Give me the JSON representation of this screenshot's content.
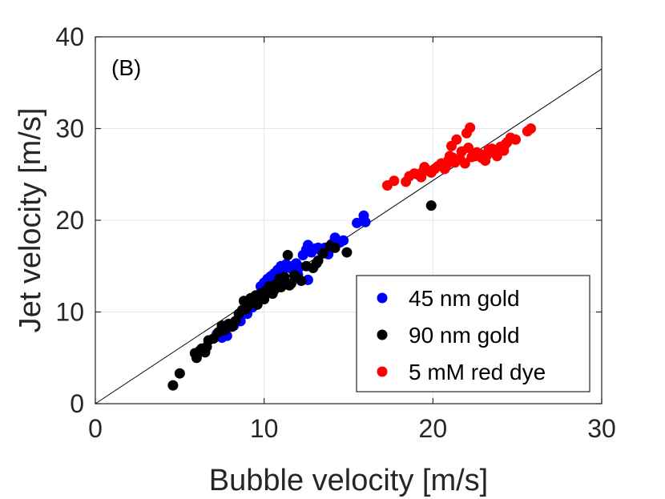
{
  "chart_data": {
    "type": "scatter",
    "panel_label": "(B)",
    "xlabel": "Bubble velocity [m/s]",
    "ylabel": "Jet velocity [m/s]",
    "xlim": [
      0,
      30
    ],
    "ylim": [
      0,
      40
    ],
    "xticks": [
      0,
      10,
      20,
      30
    ],
    "yticks": [
      0,
      10,
      20,
      30,
      40
    ],
    "grid": true,
    "legend_position": "bottom-right",
    "reference_line": {
      "x": [
        0,
        30
      ],
      "y": [
        0,
        36.5
      ],
      "color": "#000000"
    },
    "series": [
      {
        "name": "45 nm gold",
        "color": "#0000ff",
        "x": [
          7.2,
          7.5,
          7.8,
          8.2,
          8.6,
          9.0,
          9.3,
          9.6,
          9.8,
          10.0,
          10.2,
          10.4,
          10.6,
          10.8,
          11.0,
          11.2,
          11.3,
          11.5,
          11.7,
          11.9,
          12.1,
          12.3,
          12.5,
          12.6,
          12.8,
          13.0,
          13.2,
          13.4,
          13.6,
          13.8,
          14.0,
          14.2,
          14.5,
          14.7,
          15.5,
          15.9,
          16.0,
          10.5,
          11.1,
          12.0,
          12.6,
          9.7,
          10.1
        ],
        "y": [
          7.6,
          7.2,
          7.4,
          8.5,
          9.0,
          9.8,
          10.5,
          11.2,
          12.8,
          13.2,
          13.6,
          13.9,
          14.2,
          14.6,
          15.0,
          14.7,
          15.2,
          15.0,
          14.6,
          15.3,
          14.9,
          16.2,
          16.8,
          17.3,
          16.5,
          16.9,
          17.0,
          16.6,
          17.0,
          16.3,
          17.4,
          18.1,
          17.6,
          17.8,
          19.7,
          20.5,
          19.8,
          12.5,
          13.0,
          14.1,
          13.5,
          11.9,
          12.0
        ]
      },
      {
        "name": "90 nm gold",
        "color": "#000000",
        "x": [
          4.6,
          5.0,
          5.9,
          6.0,
          6.2,
          6.5,
          6.6,
          6.7,
          7.0,
          7.3,
          7.5,
          7.7,
          7.9,
          8.1,
          8.3,
          8.5,
          8.7,
          8.8,
          9.0,
          9.1,
          9.2,
          9.4,
          9.5,
          9.6,
          9.8,
          10.0,
          10.1,
          10.3,
          10.5,
          10.7,
          10.9,
          11.0,
          11.2,
          11.4,
          11.6,
          11.8,
          12.2,
          12.5,
          12.9,
          13.2,
          13.5,
          13.9,
          14.2,
          14.9,
          19.9,
          6.3,
          7.6,
          8.9,
          9.9,
          10.6,
          11.5,
          12.0,
          13.1
        ],
        "y": [
          2.0,
          3.3,
          5.5,
          5.0,
          5.8,
          5.6,
          6.2,
          6.9,
          7.1,
          7.8,
          8.5,
          8.1,
          8.7,
          8.4,
          9.0,
          9.8,
          10.2,
          11.2,
          10.5,
          10.9,
          11.5,
          11.0,
          11.8,
          10.8,
          12.0,
          11.4,
          12.3,
          12.8,
          12.0,
          13.0,
          13.6,
          12.7,
          13.8,
          16.2,
          13.1,
          14.0,
          13.4,
          15.0,
          14.8,
          15.6,
          16.4,
          17.2,
          17.0,
          16.5,
          21.6,
          6.0,
          8.0,
          10.3,
          11.6,
          12.4,
          12.9,
          13.7,
          15.3
        ]
      },
      {
        "name": "5 mM red dye",
        "color": "#ff0000",
        "x": [
          17.3,
          17.7,
          18.4,
          18.6,
          18.9,
          19.1,
          19.3,
          19.5,
          19.7,
          19.9,
          20.1,
          20.3,
          20.5,
          20.7,
          20.8,
          21.0,
          21.1,
          21.3,
          21.4,
          21.6,
          21.7,
          21.9,
          22.0,
          22.2,
          22.3,
          22.5,
          22.6,
          22.8,
          22.9,
          23.1,
          23.2,
          23.4,
          23.5,
          23.7,
          23.8,
          24.0,
          24.2,
          24.4,
          24.6,
          24.9,
          25.6,
          25.8,
          20.9,
          21.2,
          22.1,
          23.3,
          24.3,
          19.4
        ],
        "y": [
          23.8,
          24.3,
          24.2,
          24.8,
          25.1,
          25.0,
          24.7,
          25.8,
          25.4,
          25.2,
          25.6,
          25.9,
          26.2,
          25.6,
          26.0,
          27.0,
          28.1,
          26.3,
          28.8,
          26.7,
          27.5,
          26.2,
          29.5,
          30.1,
          26.9,
          27.0,
          27.4,
          27.2,
          26.8,
          26.5,
          27.1,
          27.5,
          27.8,
          27.3,
          27.0,
          28.0,
          27.6,
          28.5,
          29.0,
          28.8,
          29.7,
          30.0,
          26.5,
          26.8,
          27.9,
          27.7,
          28.3,
          25.3
        ]
      }
    ]
  }
}
